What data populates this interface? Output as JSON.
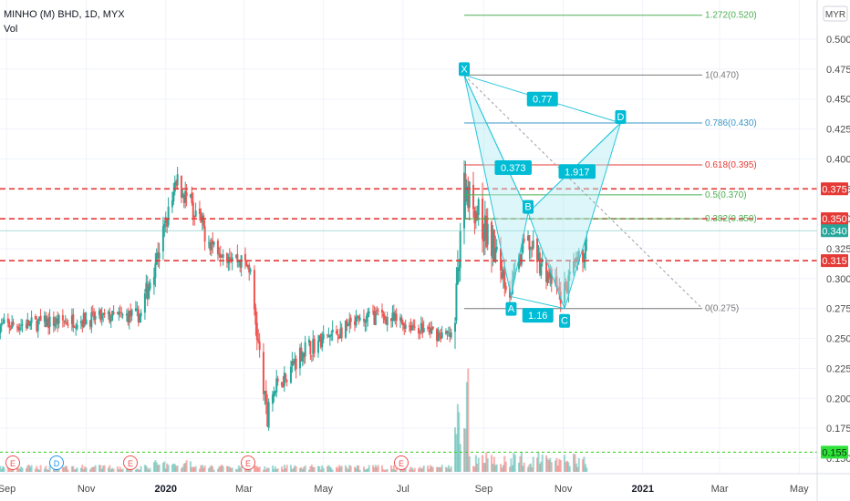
{
  "header": {
    "title": "MINHO (M) BHD, 1D, MYX",
    "indicator": "Vol",
    "currency": "MYR"
  },
  "colors": {
    "up": "#26a69a",
    "down": "#ef5350",
    "pattern_fill": "#b2ebf2",
    "pattern_line": "#26c6da",
    "label_bg": "#00bcd4",
    "dashed_red": "#e53935",
    "dashed_green": "#43d12e",
    "fib_grey": "#777777",
    "fib_blue": "#3a97c9",
    "fib_red": "#e53935",
    "fib_green": "#4caf50"
  },
  "chart_data": {
    "type": "candlestick",
    "y_axis": {
      "range": [
        0.15,
        0.51
      ],
      "ticks": [
        "0.500",
        "0.475",
        "0.450",
        "0.425",
        "0.400",
        "0.375",
        "0.350",
        "0.325",
        "0.300",
        "0.275",
        "0.250",
        "0.225",
        "0.200",
        "0.175",
        "0.150"
      ]
    },
    "x_axis": {
      "labels": [
        "Sep",
        "Nov",
        "2020",
        "Mar",
        "May",
        "Jul",
        "Sep",
        "Nov",
        "2021",
        "Mar",
        "May"
      ]
    },
    "price_labels": [
      {
        "value": "0.375",
        "color": "red"
      },
      {
        "value": "0.350",
        "color": "red"
      },
      {
        "value": "0.340",
        "color": "teal"
      },
      {
        "value": "0.315",
        "color": "red"
      },
      {
        "value": "0.155",
        "color": "green"
      }
    ],
    "horizontal_levels": [
      {
        "value": 0.375,
        "style": "dashed",
        "color": "red"
      },
      {
        "value": 0.35,
        "style": "dashed",
        "color": "red"
      },
      {
        "value": 0.315,
        "style": "dashed",
        "color": "red"
      },
      {
        "value": 0.155,
        "style": "dashed",
        "color": "green"
      }
    ],
    "fibonacci": [
      {
        "label": "1.272(0.520)",
        "value": 0.52,
        "color": "green"
      },
      {
        "label": "1(0.470)",
        "value": 0.47,
        "color": "grey"
      },
      {
        "label": "0.786(0.430)",
        "value": 0.43,
        "color": "blue"
      },
      {
        "label": "0.618(0.395)",
        "value": 0.395,
        "color": "red"
      },
      {
        "label": "0.5(0.370)",
        "value": 0.37,
        "color": "green"
      },
      {
        "label": "0.382(0.350)",
        "value": 0.35,
        "color": "green"
      },
      {
        "label": "0(0.275)",
        "value": 0.275,
        "color": "grey"
      }
    ],
    "harmonic_pattern": {
      "points": [
        {
          "label": "X",
          "date": "2020-08-17",
          "value": 0.47
        },
        {
          "label": "A",
          "date": "2020-09-22",
          "value": 0.285
        },
        {
          "label": "B",
          "date": "2020-10-05",
          "value": 0.355
        },
        {
          "label": "C",
          "date": "2020-11-02",
          "value": 0.275
        },
        {
          "label": "D",
          "date": "2020-12-15",
          "value": 0.43
        }
      ],
      "ratios": [
        {
          "label": "0.373",
          "between": "XA-AB"
        },
        {
          "label": "0.77",
          "between": "X-D"
        },
        {
          "label": "1.917",
          "between": "B-D"
        },
        {
          "label": "1.16",
          "between": "A-C"
        }
      ]
    },
    "event_markers": [
      "E",
      "D",
      "E",
      "E",
      "E"
    ],
    "series": [
      {
        "name": "",
        "segments": [
          {
            "from": "2019-08-26",
            "to": "2019-12-15",
            "start": 0.26,
            "end": 0.27,
            "noise": 0.008
          },
          {
            "from": "2019-12-15",
            "to": "2020-01-10",
            "start": 0.28,
            "end": 0.38,
            "noise": 0.012
          },
          {
            "from": "2020-01-10",
            "to": "2020-02-05",
            "start": 0.38,
            "end": 0.33,
            "noise": 0.012
          },
          {
            "from": "2020-02-05",
            "to": "2020-03-05",
            "start": 0.33,
            "end": 0.31,
            "noise": 0.01
          },
          {
            "from": "2020-03-05",
            "to": "2020-03-20",
            "start": 0.31,
            "end": 0.17,
            "noise": 0.012
          },
          {
            "from": "2020-03-20",
            "to": "2020-04-15",
            "start": 0.2,
            "end": 0.24,
            "noise": 0.01
          },
          {
            "from": "2020-04-15",
            "to": "2020-06-10",
            "start": 0.24,
            "end": 0.27,
            "noise": 0.01
          },
          {
            "from": "2020-06-10",
            "to": "2020-08-10",
            "start": 0.27,
            "end": 0.25,
            "noise": 0.008
          },
          {
            "from": "2020-08-10",
            "to": "2020-08-17",
            "start": 0.26,
            "end": 0.41,
            "noise": 0.02
          },
          {
            "from": "2020-08-17",
            "to": "2020-09-22",
            "start": 0.38,
            "end": 0.29,
            "noise": 0.018
          },
          {
            "from": "2020-09-22",
            "to": "2020-10-05",
            "start": 0.29,
            "end": 0.34,
            "noise": 0.012
          },
          {
            "from": "2020-10-05",
            "to": "2020-11-02",
            "start": 0.33,
            "end": 0.28,
            "noise": 0.012
          },
          {
            "from": "2020-11-02",
            "to": "2020-11-20",
            "start": 0.29,
            "end": 0.33,
            "noise": 0.012
          }
        ]
      }
    ]
  }
}
